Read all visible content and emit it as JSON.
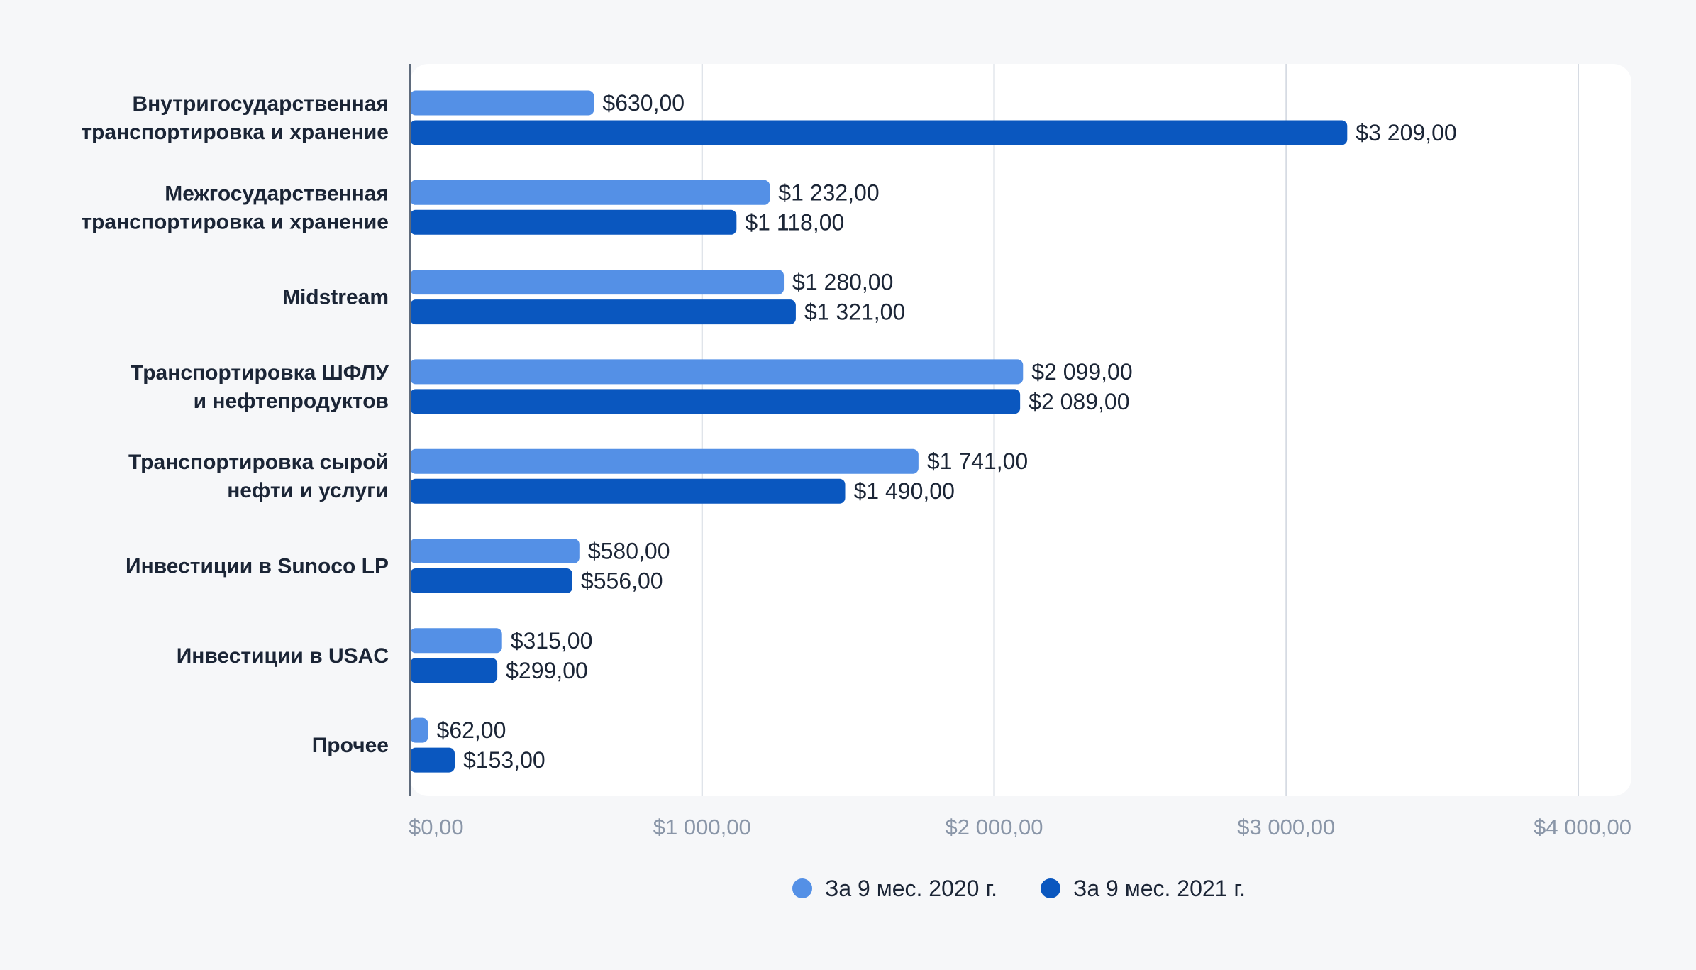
{
  "chart_data": {
    "type": "bar",
    "orientation": "horizontal",
    "title": "",
    "xlabel": "",
    "ylabel": "",
    "xlim": [
      0,
      4000
    ],
    "grid": true,
    "legend_position": "bottom-center",
    "categories": [
      [
        "Внутригосударственная",
        "транспортировка и хранение"
      ],
      [
        "Межгосударственная",
        "транспортировка и хранение"
      ],
      [
        "Midstream"
      ],
      [
        "Транспортировка ШФЛУ",
        "и нефтепродуктов"
      ],
      [
        "Транспортировка сырой",
        "нефти и услуги"
      ],
      [
        "Инвестиции в Sunoco LP"
      ],
      [
        "Инвестиции в USAC"
      ],
      [
        "Прочее"
      ]
    ],
    "series": [
      {
        "name": "За 9 мес. 2020 г.",
        "color": "#5490e6",
        "values": [
          630,
          1232,
          1280,
          2099,
          1741,
          580,
          315,
          62
        ],
        "labels": [
          "$630,00",
          "$1 232,00",
          "$1 280,00",
          "$2 099,00",
          "$1 741,00",
          "$580,00",
          "$315,00",
          "$62,00"
        ]
      },
      {
        "name": "За 9 мес. 2021 г.",
        "color": "#0a57bf",
        "values": [
          3209,
          1118,
          1321,
          2089,
          1490,
          556,
          299,
          153
        ],
        "labels": [
          "$3 209,00",
          "$1 118,00",
          "$1 321,00",
          "$2 089,00",
          "$1 490,00",
          "$556,00",
          "$299,00",
          "$153,00"
        ]
      }
    ],
    "x_ticks": [
      0,
      1000,
      2000,
      3000,
      4000
    ],
    "x_tick_labels": [
      "$0,00",
      "$1 000,00",
      "$2 000,00",
      "$3 000,00",
      "$4 000,00"
    ]
  }
}
